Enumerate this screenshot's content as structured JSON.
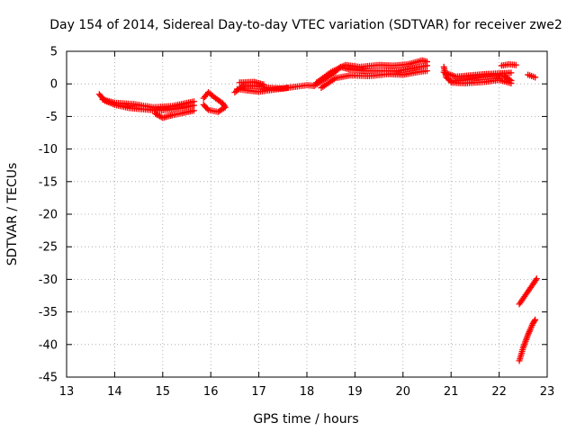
{
  "chart_data": {
    "type": "scatter",
    "title": "Day 154 of 2014, Sidereal Day-to-day VTEC variation (SDTVAR) for receiver zwe2",
    "xlabel": "GPS time / hours",
    "ylabel": "SDTVAR / TECUs",
    "xlim": [
      13,
      23
    ],
    "ylim": [
      -45,
      5
    ],
    "xticks": [
      13,
      14,
      15,
      16,
      17,
      18,
      19,
      20,
      21,
      22,
      23
    ],
    "yticks": [
      5,
      0,
      -5,
      -10,
      -15,
      -20,
      -25,
      -30,
      -35,
      -40,
      -45
    ],
    "grid": true,
    "marker": "plus",
    "color": "#ff0000",
    "series": [
      {
        "segments": [
          [
            [
              13.68,
              -1.6
            ],
            [
              13.8,
              -2.6
            ],
            [
              14.0,
              -3.2
            ],
            [
              14.3,
              -3.7
            ],
            [
              14.6,
              -3.9
            ],
            [
              14.9,
              -4.1
            ],
            [
              15.1,
              -4.0
            ],
            [
              15.4,
              -3.7
            ],
            [
              15.65,
              -3.3
            ]
          ],
          [
            [
              13.75,
              -2.4
            ],
            [
              14.0,
              -2.9
            ],
            [
              14.4,
              -3.1
            ],
            [
              14.8,
              -3.6
            ],
            [
              15.2,
              -3.4
            ],
            [
              15.65,
              -2.7
            ]
          ],
          [
            [
              14.85,
              -4.6
            ],
            [
              15.0,
              -5.2
            ],
            [
              15.2,
              -4.8
            ],
            [
              15.4,
              -4.5
            ],
            [
              15.65,
              -4.1
            ]
          ],
          [
            [
              15.85,
              -2.2
            ],
            [
              15.95,
              -1.3
            ],
            [
              16.1,
              -2.2
            ],
            [
              16.25,
              -3.0
            ],
            [
              16.3,
              -3.6
            ],
            [
              16.15,
              -4.3
            ],
            [
              15.95,
              -4.0
            ],
            [
              15.85,
              -3.2
            ]
          ],
          [
            [
              16.5,
              -1.3
            ],
            [
              16.65,
              -0.4
            ],
            [
              16.9,
              -0.3
            ],
            [
              17.2,
              -0.6
            ],
            [
              17.5,
              -0.7
            ],
            [
              17.8,
              -0.4
            ],
            [
              18.0,
              -0.2
            ],
            [
              18.15,
              -0.3
            ]
          ],
          [
            [
              16.55,
              -0.8
            ],
            [
              16.75,
              -1.0
            ],
            [
              17.0,
              -1.2
            ],
            [
              17.3,
              -0.9
            ],
            [
              17.6,
              -0.6
            ]
          ],
          [
            [
              16.6,
              0.2
            ],
            [
              16.9,
              0.3
            ],
            [
              17.1,
              -0.1
            ]
          ],
          [
            [
              18.15,
              -0.3
            ],
            [
              18.35,
              0.6
            ],
            [
              18.55,
              1.6
            ],
            [
              18.7,
              2.6
            ],
            [
              18.9,
              2.2
            ],
            [
              19.2,
              2.0
            ],
            [
              19.5,
              2.0
            ],
            [
              19.9,
              2.0
            ],
            [
              20.2,
              2.4
            ],
            [
              20.5,
              2.8
            ]
          ],
          [
            [
              18.2,
              0.2
            ],
            [
              18.5,
              1.8
            ],
            [
              18.8,
              2.9
            ],
            [
              19.1,
              2.6
            ],
            [
              19.5,
              2.9
            ],
            [
              19.8,
              2.8
            ],
            [
              20.1,
              3.0
            ],
            [
              20.4,
              3.6
            ],
            [
              20.5,
              3.4
            ]
          ],
          [
            [
              18.3,
              -0.6
            ],
            [
              18.6,
              0.9
            ],
            [
              18.9,
              1.3
            ],
            [
              19.3,
              1.2
            ],
            [
              19.7,
              1.5
            ],
            [
              20.0,
              1.4
            ],
            [
              20.3,
              1.8
            ],
            [
              20.5,
              2.0
            ]
          ],
          [
            [
              20.85,
              2.6
            ],
            [
              20.9,
              1.0
            ],
            [
              21.0,
              0.4
            ],
            [
              21.3,
              0.6
            ],
            [
              21.6,
              1.0
            ],
            [
              21.9,
              1.2
            ],
            [
              22.1,
              1.2
            ],
            [
              22.25,
              0.5
            ]
          ],
          [
            [
              20.85,
              1.8
            ],
            [
              21.1,
              1.1
            ],
            [
              21.4,
              1.3
            ],
            [
              21.7,
              1.5
            ],
            [
              22.0,
              1.6
            ],
            [
              22.25,
              1.7
            ]
          ],
          [
            [
              21.0,
              0.2
            ],
            [
              21.3,
              0.1
            ],
            [
              21.7,
              0.3
            ],
            [
              22.0,
              0.6
            ],
            [
              22.25,
              0.1
            ]
          ],
          [
            [
              22.05,
              2.8
            ],
            [
              22.2,
              3.0
            ],
            [
              22.35,
              2.9
            ]
          ],
          [
            [
              22.6,
              1.4
            ],
            [
              22.75,
              1.0
            ]
          ],
          [
            [
              22.42,
              -33.8
            ],
            [
              22.55,
              -32.4
            ],
            [
              22.7,
              -30.8
            ],
            [
              22.78,
              -29.9
            ]
          ],
          [
            [
              22.42,
              -42.5
            ],
            [
              22.5,
              -40.5
            ],
            [
              22.6,
              -38.5
            ],
            [
              22.7,
              -36.8
            ],
            [
              22.75,
              -36.2
            ]
          ]
        ]
      }
    ]
  }
}
